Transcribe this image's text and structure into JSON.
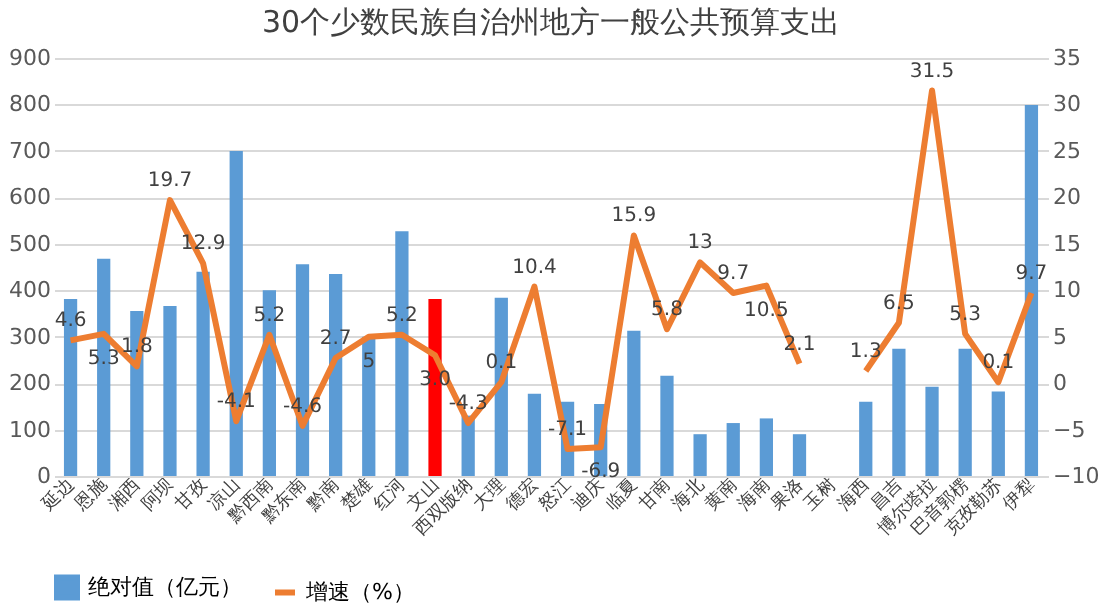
{
  "chart_data": {
    "type": "bar",
    "title": "30个少数民族自治州地方一般公共预算支出",
    "categories": [
      "延边",
      "恩施",
      "湘西",
      "阿坝",
      "甘孜",
      "凉山",
      "黔西南",
      "黔东南",
      "黔南",
      "楚雄",
      "红河",
      "文山",
      "西双版纳",
      "大理",
      "德宏",
      "怒江",
      "迪庆",
      "临夏",
      "甘南",
      "海北",
      "黄南",
      "海南",
      "果洛",
      "玉树",
      "海西",
      "昌吉",
      "博尔塔拉",
      "巴音郭楞",
      "克孜勒苏",
      "伊犁"
    ],
    "series": [
      {
        "name": "绝对值（亿元）",
        "color": "#5b9bd5",
        "colors": [
          "#5b9bd5",
          "#5b9bd5",
          "#5b9bd5",
          "#5b9bd5",
          "#5b9bd5",
          "#5b9bd5",
          "#5b9bd5",
          "#5b9bd5",
          "#5b9bd5",
          "#5b9bd5",
          "#5b9bd5",
          "#ff0000",
          "#5b9bd5",
          "#5b9bd5",
          "#5b9bd5",
          "#5b9bd5",
          "#5b9bd5",
          "#5b9bd5",
          "#5b9bd5",
          "#5b9bd5",
          "#5b9bd5",
          "#5b9bd5",
          "#5b9bd5",
          "#5b9bd5",
          "#5b9bd5",
          "#5b9bd5",
          "#5b9bd5",
          "#5b9bd5",
          "#5b9bd5",
          "#5b9bd5"
        ],
        "values": [
          381,
          468,
          355,
          366,
          440,
          700,
          400,
          456,
          435,
          300,
          527,
          381,
          130,
          384,
          177,
          160,
          155,
          313,
          216,
          90,
          114,
          124,
          90,
          null,
          160,
          274,
          192,
          274,
          182,
          799
        ]
      },
      {
        "name": "增速（%）",
        "type": "line",
        "axis": "y2",
        "color": "#ed7d31",
        "values": [
          4.6,
          5.3,
          1.8,
          19.7,
          12.9,
          -4.1,
          5.2,
          -4.6,
          2.7,
          5,
          5.2,
          3.0,
          -4.3,
          0.1,
          10.4,
          -7.1,
          -6.9,
          15.9,
          5.8,
          13,
          9.7,
          10.5,
          2.1,
          null,
          1.3,
          6.5,
          31.5,
          5.3,
          0.1,
          9.7
        ],
        "value_labels": [
          "4.6",
          "5.3",
          "1.8",
          "19.7",
          "12.9",
          "-4.1",
          "5.2",
          "-4.6",
          "2.7",
          "5",
          "5.2",
          "3.0",
          "-4.3",
          "0.1",
          "10.4",
          "-7.1",
          "-6.9",
          "15.9",
          "5.8",
          "13",
          "9.7",
          "10.5",
          "2.1",
          null,
          "1.3",
          "6.5",
          "31.5",
          "5.3",
          "0.1",
          "9.7"
        ]
      }
    ],
    "ylim": [
      0,
      900
    ],
    "yticks": [
      0,
      100,
      200,
      300,
      400,
      500,
      600,
      700,
      800,
      900
    ],
    "y2lim": [
      -10,
      35
    ],
    "y2ticks": [
      -10,
      -5,
      0,
      5,
      10,
      15,
      20,
      25,
      30,
      35
    ],
    "grid": "y",
    "legend": "bottom"
  }
}
